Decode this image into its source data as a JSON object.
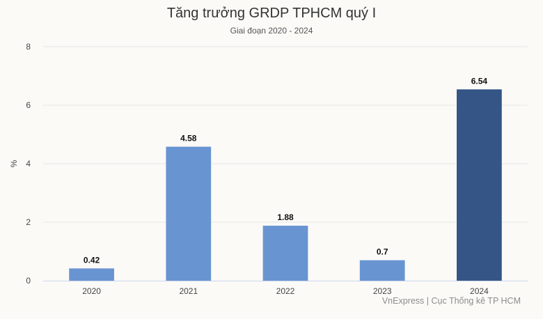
{
  "chart_data": {
    "type": "bar",
    "title": "Tăng trưởng GRDP TPHCM quý I",
    "subtitle": "Giai đoạn 2020 - 2024",
    "xlabel": "",
    "ylabel": "%",
    "categories": [
      "2020",
      "2021",
      "2022",
      "2023",
      "2024"
    ],
    "values": [
      0.42,
      4.58,
      1.88,
      0.7,
      6.54
    ],
    "value_labels": [
      "0.42",
      "4.58",
      "1.88",
      "0.7",
      "6.54"
    ],
    "ylim": [
      0,
      8
    ],
    "yticks": [
      0,
      2,
      4,
      6,
      8
    ],
    "grid": true,
    "legend": "none",
    "colors": {
      "bar": "#6994d2",
      "highlight_bar": "#345586",
      "grid": "#e6e6e6",
      "axis": "#ccd6eb"
    },
    "highlight_index": 4,
    "credits": "VnExpress | Cục Thống kê TP HCM"
  }
}
